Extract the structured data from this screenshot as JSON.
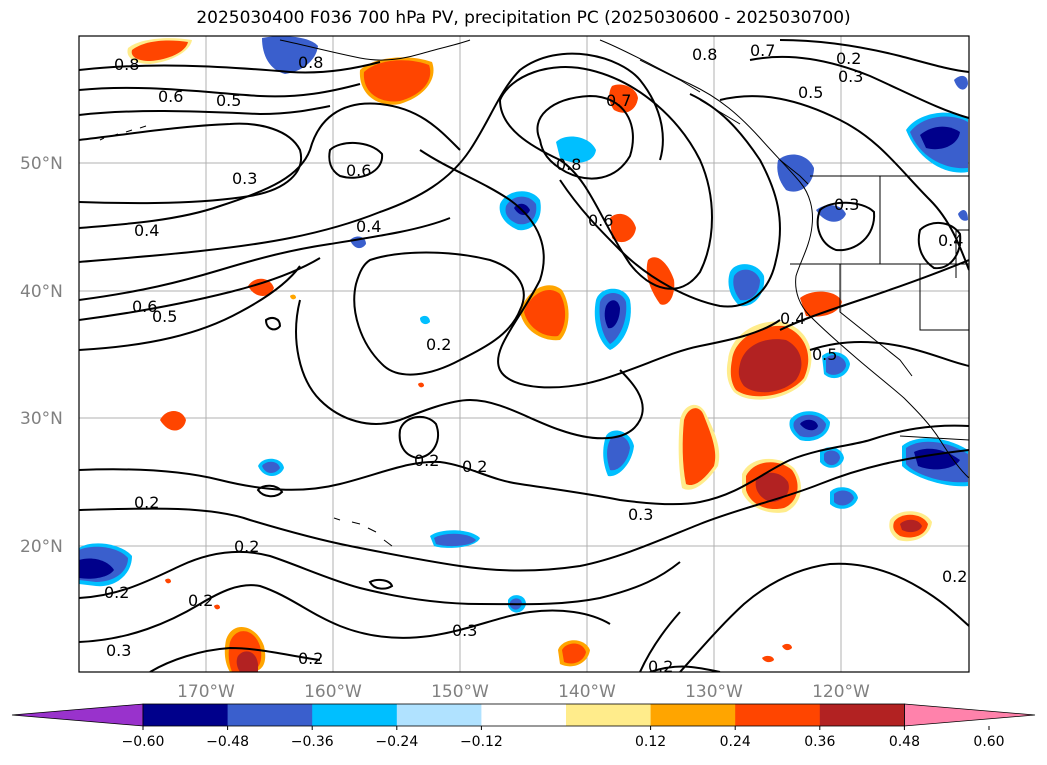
{
  "title": "2025030400 F036 700 hPa PV, precipitation PC (2025030600 - 2025030700)",
  "map": {
    "lat_labels": [
      "50°N",
      "40°N",
      "30°N",
      "20°N"
    ],
    "lon_labels": [
      "170°W",
      "160°W",
      "150°W",
      "140°W",
      "130°W",
      "120°W"
    ],
    "contour_labels": [
      "0.8",
      "0.8",
      "0.6",
      "0.5",
      "0.3",
      "0.4",
      "0.6",
      "0.5",
      "0.6",
      "0.4",
      "0.2",
      "0.2",
      "0.2",
      "0.2",
      "0.2",
      "0.3",
      "0.7",
      "0.8",
      "0.6",
      "0.8",
      "0.7",
      "0.2",
      "0.3",
      "0.5",
      "0.3",
      "0.4",
      "0.4",
      "0.5",
      "0.3",
      "0.2",
      "0.2",
      "0.3",
      "0.2",
      "0.2",
      "0.2"
    ],
    "colors": {
      "contour": "#000000",
      "grid": "#b0b0b0",
      "coast": "#000000"
    }
  },
  "colorbar": {
    "colors": [
      "#9932cc",
      "#00008b",
      "#3a5fcd",
      "#00bfff",
      "#b0e2ff",
      "#ffffff",
      "#ffec8b",
      "#ffa500",
      "#ff4500",
      "#b22222",
      "#ff82ab"
    ],
    "tick_labels": [
      "−0.60",
      "−0.48",
      "−0.36",
      "−0.24",
      "−0.12",
      "0.12",
      "0.24",
      "0.36",
      "0.48",
      "0.60"
    ]
  }
}
